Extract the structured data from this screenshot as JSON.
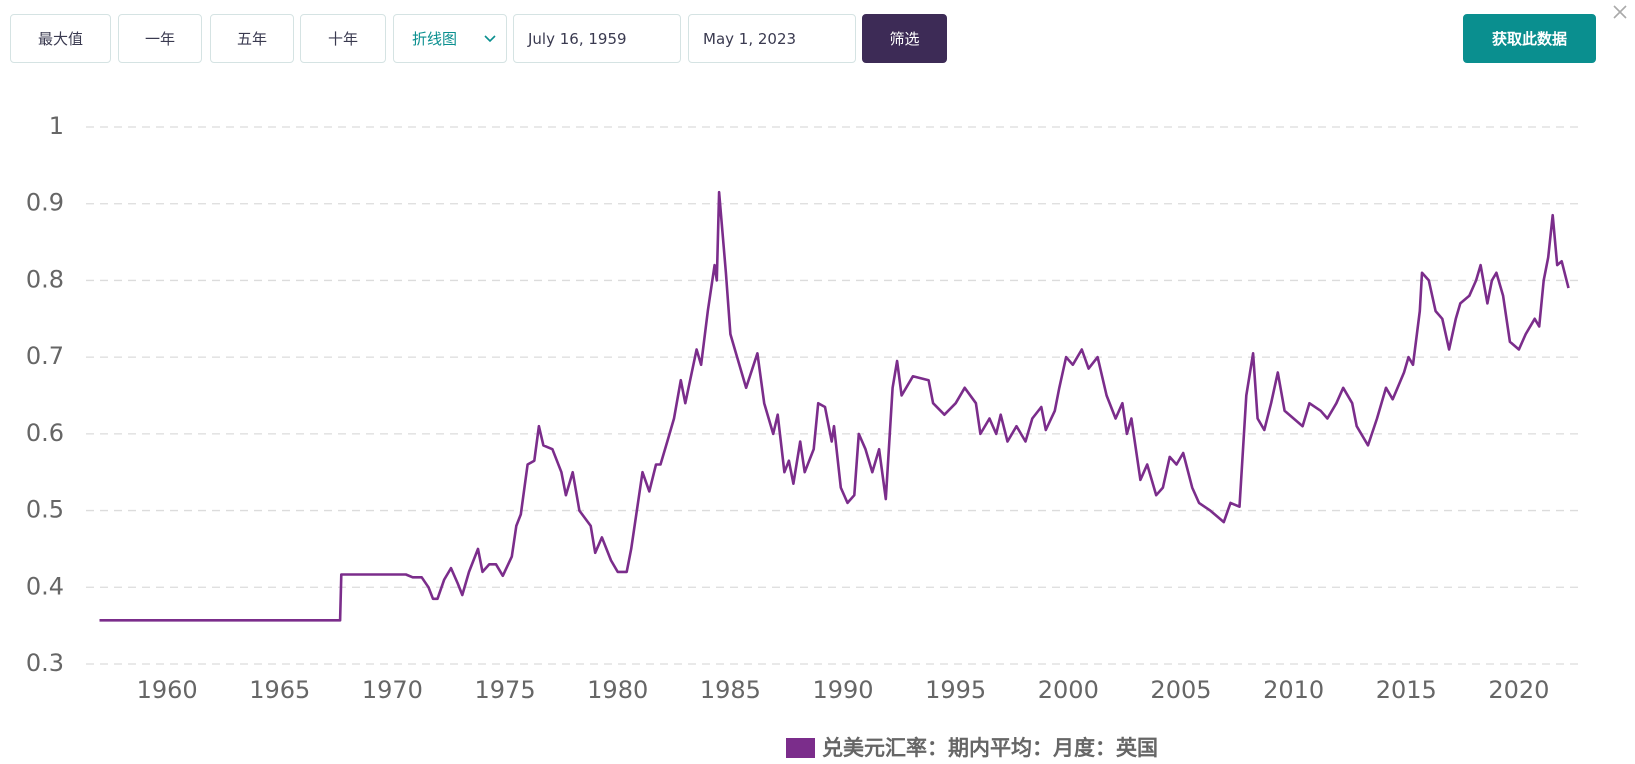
{
  "toolbar": {
    "buttons": [
      "最大值",
      "一年",
      "五年",
      "十年"
    ],
    "chart_type": "折线图",
    "start_date": "July 16, 1959",
    "end_date": "May 1, 2023",
    "filter": "筛选",
    "download": "获取此数据"
  },
  "chart_data": {
    "type": "line",
    "x": [
      1957.0,
      1967.68,
      1967.73,
      1970.6,
      1970.9,
      1971.3,
      1971.6,
      1971.8,
      1972.0,
      1972.3,
      1972.6,
      1972.9,
      1973.1,
      1973.4,
      1973.8,
      1974.0,
      1974.3,
      1974.6,
      1974.9,
      1975.3,
      1975.5,
      1975.7,
      1976.0,
      1976.3,
      1976.5,
      1976.7,
      1977.1,
      1977.5,
      1977.7,
      1978.0,
      1978.3,
      1978.8,
      1979.0,
      1979.3,
      1979.7,
      1980.0,
      1980.4,
      1980.6,
      1981.1,
      1981.4,
      1981.7,
      1981.9,
      1982.2,
      1982.5,
      1982.8,
      1983.0,
      1983.5,
      1983.7,
      1984.0,
      1984.3,
      1984.4,
      1984.5,
      1984.8,
      1985.0,
      1985.3,
      1985.7,
      1986.2,
      1986.5,
      1986.9,
      1987.1,
      1987.4,
      1987.6,
      1987.8,
      1988.1,
      1988.3,
      1988.7,
      1988.9,
      1989.2,
      1989.5,
      1989.6,
      1989.9,
      1990.2,
      1990.5,
      1990.7,
      1991.0,
      1991.3,
      1991.6,
      1991.9,
      1992.2,
      1992.4,
      1992.6,
      1993.1,
      1993.8,
      1994.0,
      1994.5,
      1995.0,
      1995.4,
      1995.9,
      1996.1,
      1996.5,
      1996.8,
      1997.0,
      1997.3,
      1997.7,
      1998.1,
      1998.4,
      1998.8,
      1999.0,
      1999.4,
      1999.6,
      1999.9,
      2000.2,
      2000.6,
      2000.9,
      2001.3,
      2001.7,
      2002.1,
      2002.4,
      2002.6,
      2002.8,
      2003.2,
      2003.5,
      2003.9,
      2004.2,
      2004.5,
      2004.8,
      2005.1,
      2005.5,
      2005.8,
      2006.3,
      2006.7,
      2006.9,
      2007.2,
      2007.6,
      2007.9,
      2008.2,
      2008.4,
      2008.7,
      2009.0,
      2009.3,
      2009.6,
      2010.0,
      2010.4,
      2010.7,
      2011.2,
      2011.5,
      2011.9,
      2012.2,
      2012.6,
      2012.8,
      2013.3,
      2013.7,
      2014.1,
      2014.4,
      2014.9,
      2015.1,
      2015.3,
      2015.6,
      2015.7,
      2016.0,
      2016.3,
      2016.6,
      2016.9,
      2017.2,
      2017.4,
      2017.8,
      2018.1,
      2018.3,
      2018.6,
      2018.8,
      2019.0,
      2019.3,
      2019.6,
      2020.0,
      2020.3,
      2020.7,
      2020.9,
      2021.1,
      2021.3,
      2021.5,
      2021.7,
      2021.9,
      2022.2
    ],
    "series": [
      {
        "name": "兑美元汇率：期内平均：月度：英国",
        "color": "#7b2d8b",
        "values": [
          0.357,
          0.357,
          0.4167,
          0.4167,
          0.413,
          0.413,
          0.4,
          0.385,
          0.385,
          0.41,
          0.425,
          0.405,
          0.39,
          0.42,
          0.45,
          0.42,
          0.43,
          0.43,
          0.415,
          0.44,
          0.48,
          0.495,
          0.56,
          0.565,
          0.61,
          0.585,
          0.58,
          0.55,
          0.52,
          0.55,
          0.5,
          0.48,
          0.445,
          0.465,
          0.435,
          0.42,
          0.42,
          0.45,
          0.55,
          0.525,
          0.56,
          0.56,
          0.59,
          0.62,
          0.67,
          0.64,
          0.71,
          0.69,
          0.76,
          0.82,
          0.8,
          0.915,
          0.81,
          0.73,
          0.7,
          0.66,
          0.705,
          0.64,
          0.6,
          0.625,
          0.55,
          0.565,
          0.535,
          0.59,
          0.55,
          0.58,
          0.64,
          0.635,
          0.59,
          0.61,
          0.53,
          0.51,
          0.52,
          0.6,
          0.58,
          0.55,
          0.58,
          0.515,
          0.66,
          0.695,
          0.65,
          0.675,
          0.67,
          0.64,
          0.625,
          0.64,
          0.66,
          0.64,
          0.6,
          0.62,
          0.6,
          0.625,
          0.59,
          0.61,
          0.59,
          0.62,
          0.635,
          0.605,
          0.63,
          0.66,
          0.7,
          0.69,
          0.71,
          0.685,
          0.7,
          0.65,
          0.62,
          0.64,
          0.6,
          0.62,
          0.54,
          0.56,
          0.52,
          0.53,
          0.57,
          0.56,
          0.575,
          0.53,
          0.51,
          0.5,
          0.49,
          0.485,
          0.51,
          0.505,
          0.65,
          0.705,
          0.62,
          0.605,
          0.64,
          0.68,
          0.63,
          0.62,
          0.61,
          0.64,
          0.63,
          0.62,
          0.64,
          0.66,
          0.64,
          0.61,
          0.585,
          0.62,
          0.66,
          0.645,
          0.68,
          0.7,
          0.69,
          0.76,
          0.81,
          0.8,
          0.76,
          0.75,
          0.71,
          0.75,
          0.77,
          0.78,
          0.8,
          0.82,
          0.77,
          0.8,
          0.81,
          0.78,
          0.72,
          0.71,
          0.73,
          0.75,
          0.74,
          0.8,
          0.83,
          0.885,
          0.82,
          0.825,
          0.79
        ]
      }
    ],
    "xlim": [
      1956.4,
      2022.8
    ],
    "ylim": [
      0.3,
      1
    ],
    "xticks": [
      1960,
      1965,
      1970,
      1975,
      1980,
      1985,
      1990,
      1995,
      2000,
      2005,
      2010,
      2015,
      2020
    ],
    "yticks": [
      0.3,
      0.4,
      0.5,
      0.6,
      0.7,
      0.8,
      0.9,
      1
    ],
    "grid": true,
    "legend": "bottom"
  }
}
